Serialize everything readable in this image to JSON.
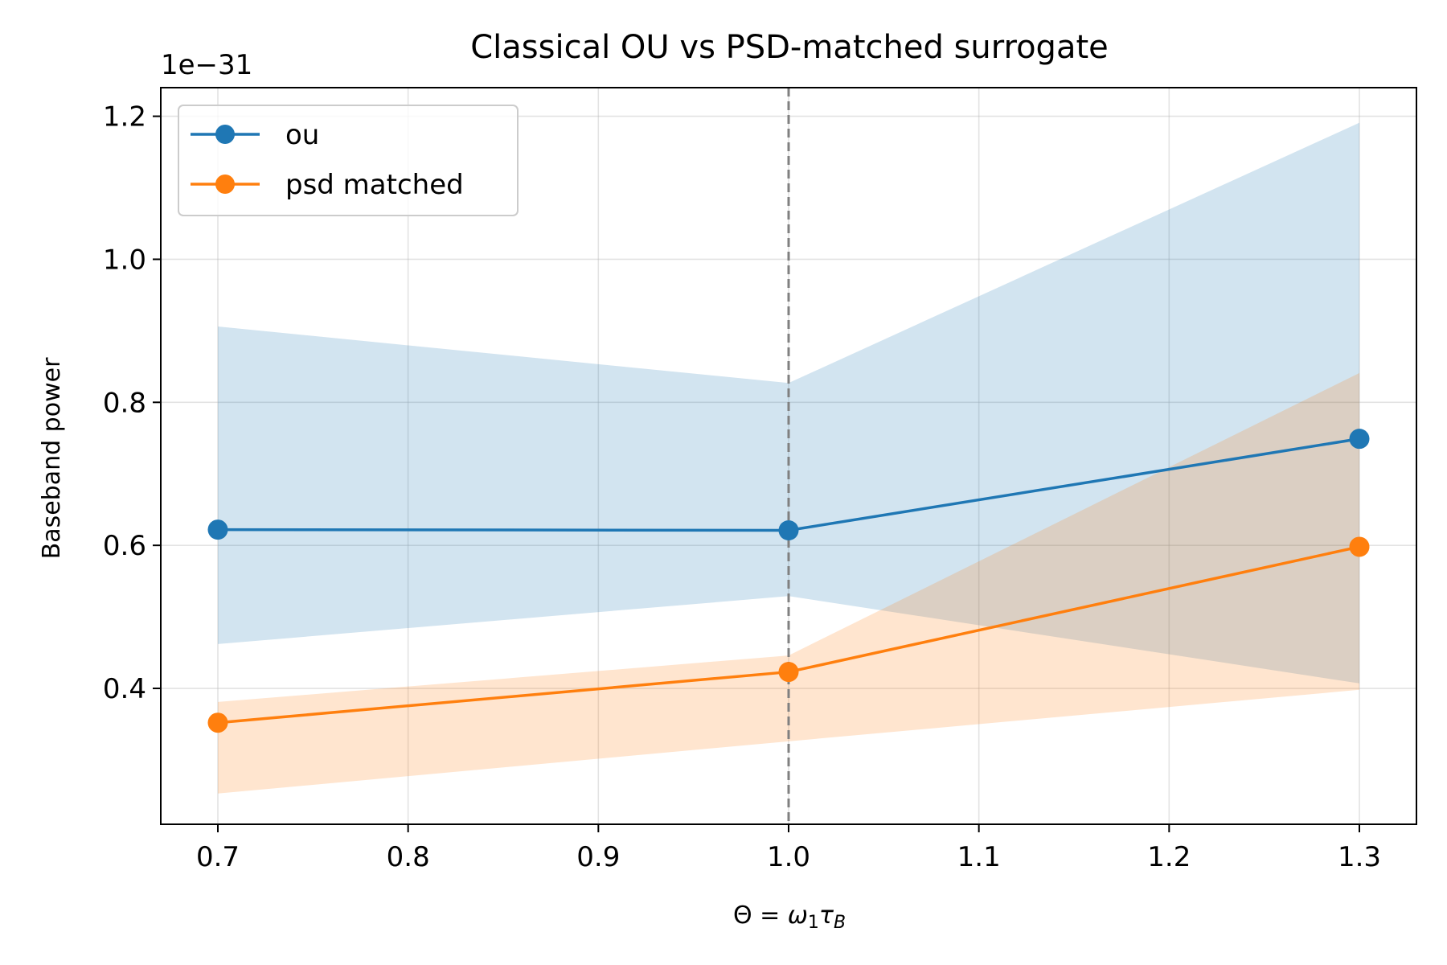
{
  "chart_data": {
    "type": "line",
    "title": "Classical OU vs PSD-matched surrogate",
    "xlabel": "Θ = ω₁τ_B",
    "ylabel": "Baseband power",
    "y_offset_label": "1e−31",
    "x": [
      0.7,
      1.0,
      1.3
    ],
    "xlim": [
      0.67,
      1.33
    ],
    "ylim": [
      0.21,
      1.24
    ],
    "x_ticks": [
      "0.7",
      "0.8",
      "0.9",
      "1.0",
      "1.1",
      "1.2",
      "1.3"
    ],
    "x_tick_values": [
      0.7,
      0.8,
      0.9,
      1.0,
      1.1,
      1.2,
      1.3
    ],
    "y_ticks": [
      "0.4",
      "0.6",
      "0.8",
      "1.0",
      "1.2"
    ],
    "y_tick_values": [
      0.4,
      0.6,
      0.8,
      1.0,
      1.2
    ],
    "grid": true,
    "legend_position": "upper-left",
    "vline_x": 1.0,
    "series": [
      {
        "name": "ou",
        "color": "#1f77b4",
        "band_color": "#1f77b4",
        "values": [
          0.622,
          0.621,
          0.749
        ],
        "lower": [
          0.462,
          0.529,
          0.407
        ],
        "upper": [
          0.906,
          0.827,
          1.191
        ]
      },
      {
        "name": "psd matched",
        "color": "#ff7f0e",
        "band_color": "#ff7f0e",
        "values": [
          0.352,
          0.423,
          0.598
        ],
        "lower": [
          0.253,
          0.326,
          0.398
        ],
        "upper": [
          0.381,
          0.446,
          0.841
        ]
      }
    ]
  }
}
